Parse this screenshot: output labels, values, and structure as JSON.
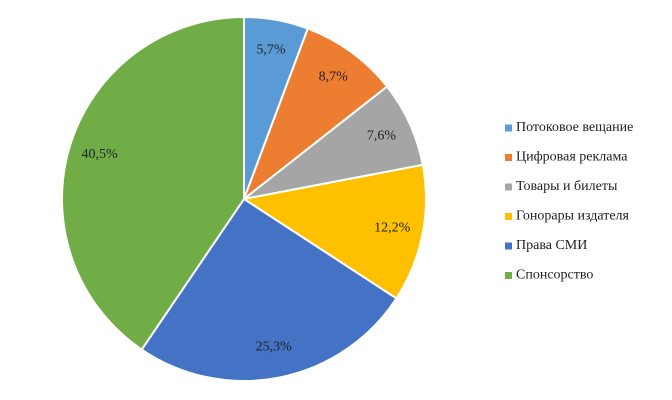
{
  "chart_data": {
    "type": "pie",
    "categories": [
      "Потоковое вещание",
      "Цифровая реклама",
      "Товары и билеты",
      "Гонорары издателя",
      "Права СМИ",
      "Спонсорство"
    ],
    "values": [
      5.7,
      8.7,
      7.6,
      12.2,
      25.3,
      40.5
    ],
    "value_labels": [
      "5,7%",
      "8,7%",
      "7,6%",
      "12,2%",
      "25,3%",
      "40,5%"
    ],
    "colors": [
      "#5b9bd5",
      "#ed7d31",
      "#a5a5a5",
      "#ffc000",
      "#4472c4",
      "#70ad47"
    ],
    "legend": "right"
  }
}
